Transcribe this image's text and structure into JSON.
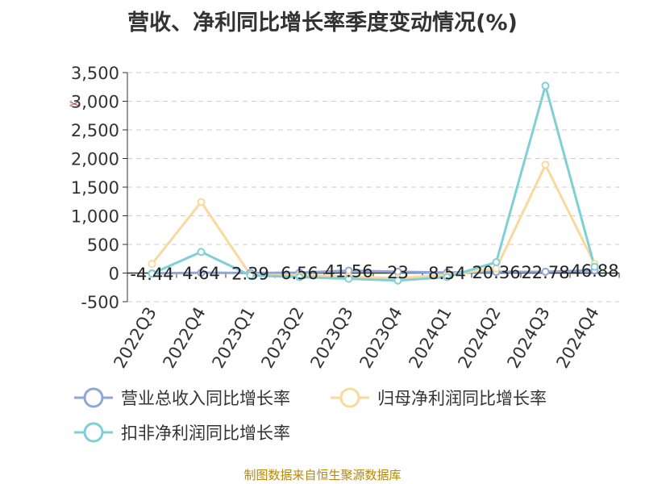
{
  "page": {
    "title": "营收、净利同比增长率季度变动情况(%)",
    "source": "制图数据来自恒生聚源数据库",
    "toolbox_icon": "scissors-icon"
  },
  "chart_data": {
    "type": "line",
    "title": "营收、净利同比增长率季度变动情况(%)",
    "categories": [
      "2022Q3",
      "2022Q4",
      "2023Q1",
      "2023Q2",
      "2023Q3",
      "2023Q4",
      "2024Q1",
      "2024Q2",
      "2024Q3",
      "2024Q4"
    ],
    "y_ticks": [
      "3,500",
      "3,000",
      "2,500",
      "2,000",
      "1,500",
      "1,000",
      "500",
      "0",
      "-500"
    ],
    "ylim": [
      -500,
      3500
    ],
    "grid": true,
    "legend_position": "bottom",
    "series": [
      {
        "name": "营业总收入同比增长率",
        "color": "#8ea6d8",
        "values": [
          -4.44,
          4.64,
          2.39,
          6.56,
          41.56,
          23,
          8.54,
          20.36,
          22.78,
          46.88
        ],
        "labels": [
          "-4.44",
          "4.64",
          "2.39",
          "6.56",
          "41.56",
          "23",
          "8.54",
          "20.36",
          "22.78",
          "46.88"
        ]
      },
      {
        "name": "归母净利润同比增长率",
        "color": "#f9d99c",
        "values": [
          160,
          1240,
          -30,
          -40,
          -60,
          -90,
          -30,
          80,
          1890,
          160
        ]
      },
      {
        "name": "扣非净利润同比增长率",
        "color": "#7fd0d6",
        "values": [
          -10,
          370,
          -40,
          -70,
          -100,
          -130,
          -70,
          190,
          3270,
          110
        ]
      }
    ]
  }
}
